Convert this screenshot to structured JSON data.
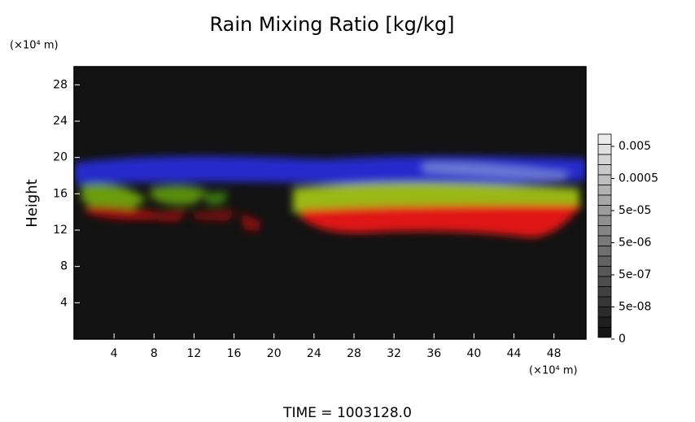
{
  "chart_data": {
    "type": "field",
    "title": "Rain Mixing Ratio [kg/kg]",
    "y_unit": "(×10⁴ m)",
    "x_unit": "(×10⁴ m)",
    "y_label": "Height",
    "footer": "TIME = 1003128.0",
    "xlim": [
      0,
      51.2
    ],
    "xticks": [
      4,
      8,
      12,
      16,
      20,
      24,
      28,
      32,
      36,
      40,
      44,
      48
    ],
    "ylim": [
      0,
      30
    ],
    "yticks": [
      4,
      8,
      12,
      16,
      20,
      24,
      28
    ],
    "colorbar_ticks": [
      0,
      {
        "value": 5e-08,
        "label": "5e-08"
      },
      {
        "value": 5e-07,
        "label": "5e-07"
      },
      {
        "value": 5e-06,
        "label": "5e-06"
      },
      {
        "value": 5e-05,
        "label": "5e-05"
      },
      0.0005,
      0.005
    ]
  }
}
